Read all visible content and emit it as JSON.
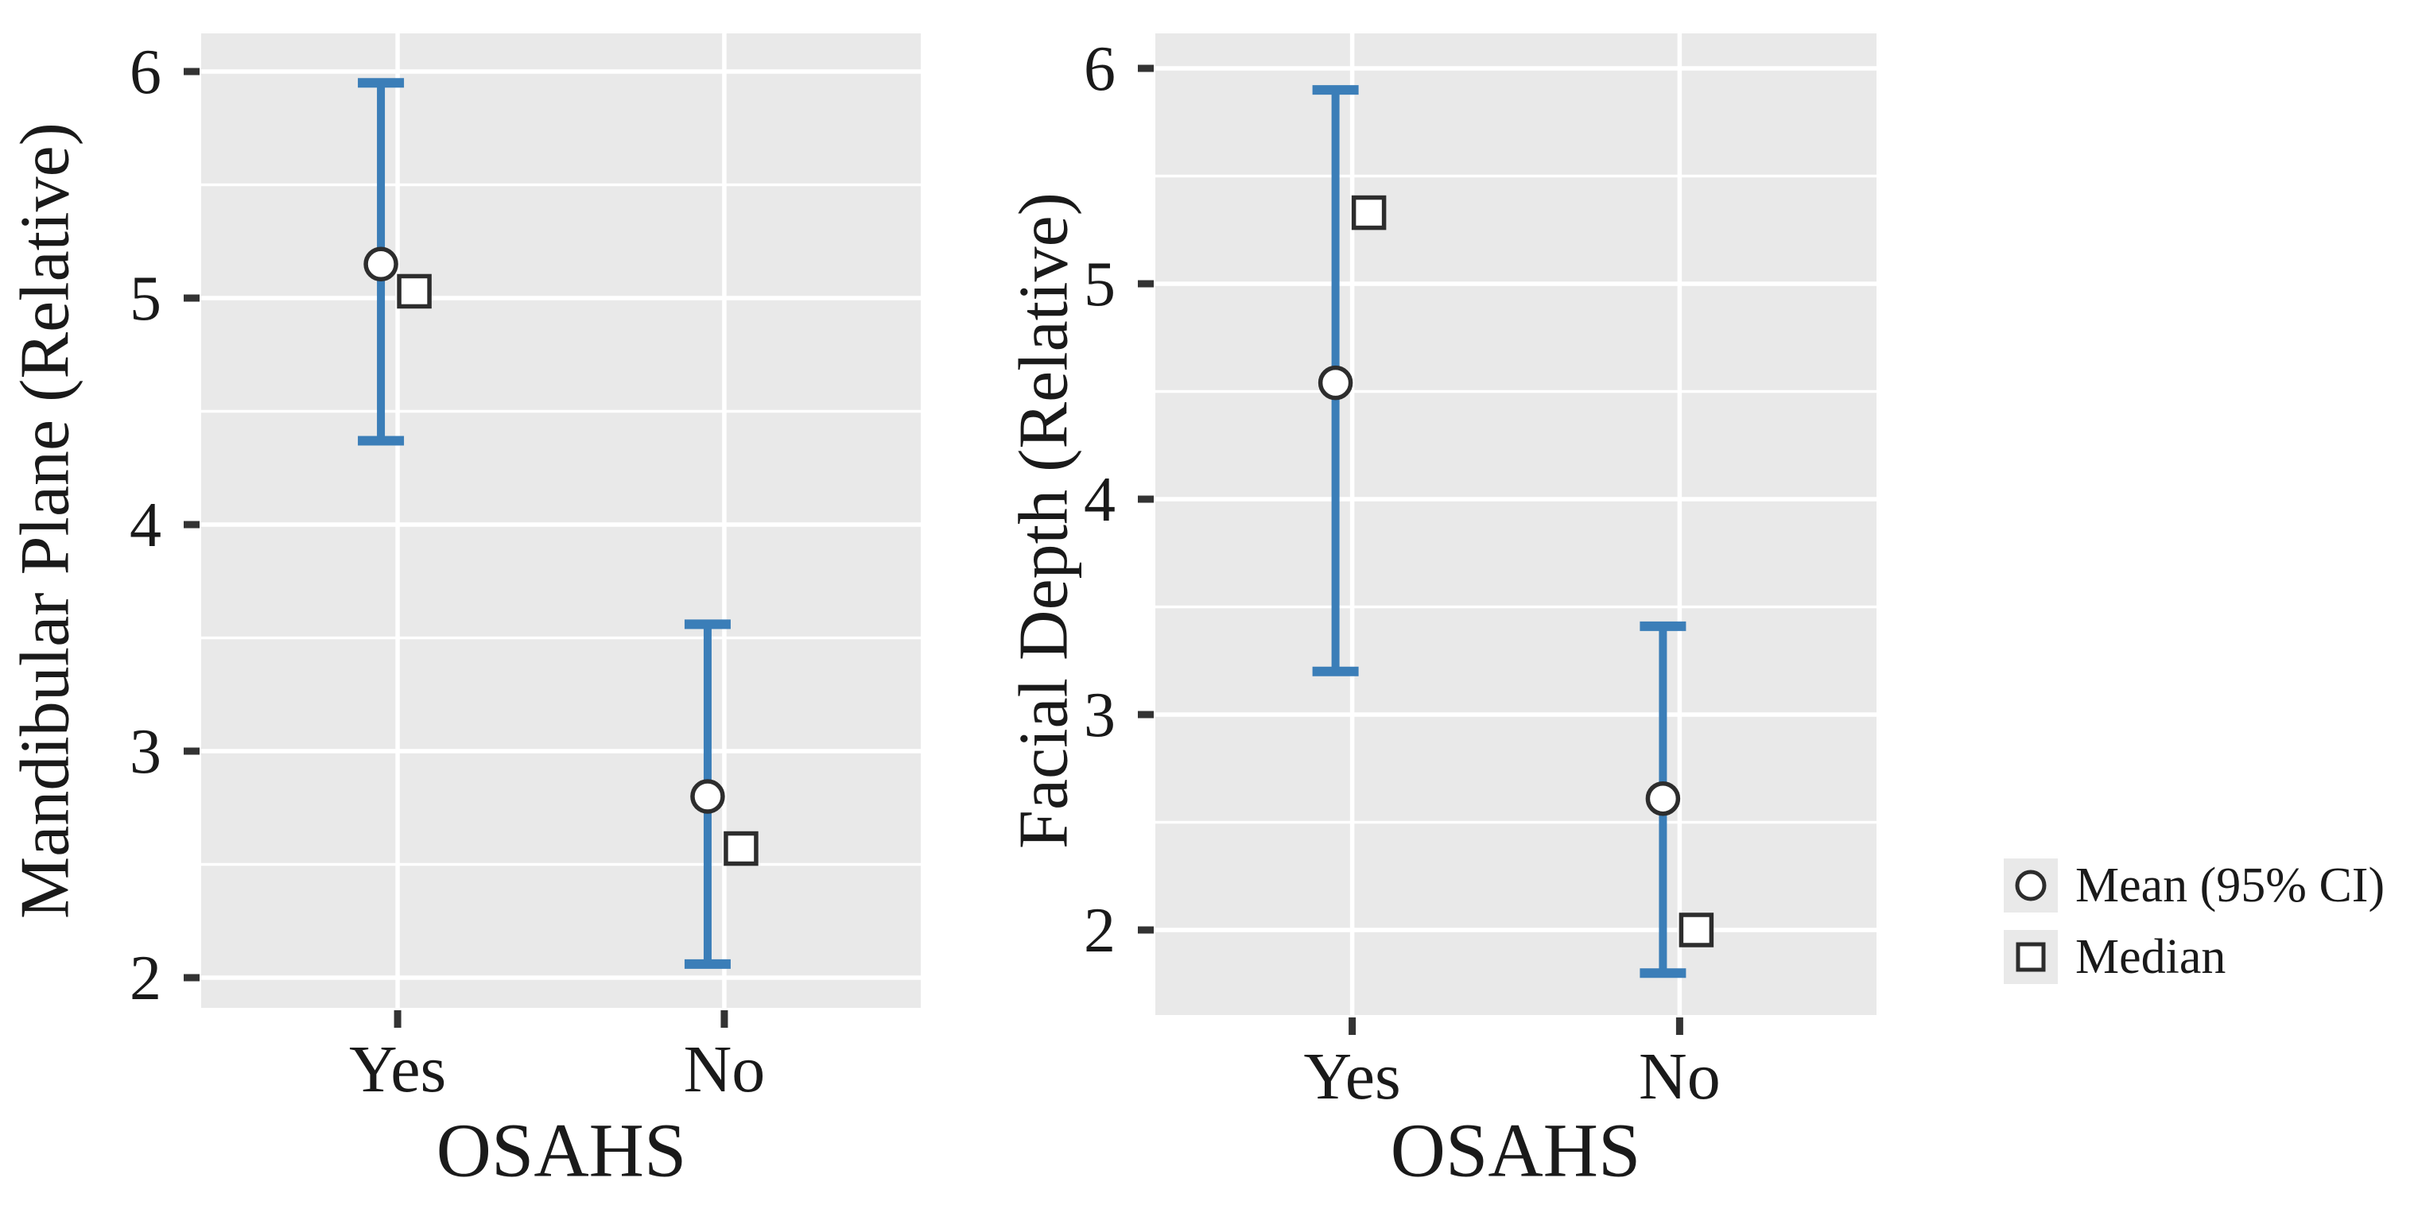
{
  "colors": {
    "errorbar_blue": "#3b7eb8",
    "marker_stroke": "#2d2d2d",
    "marker_fill": "#ffffff",
    "panel_background": "#e9e9e9",
    "gridline": "#ffffff",
    "tick_mark": "#333333",
    "text": "#1a1a1a"
  },
  "legend": {
    "items": [
      {
        "marker": "circle-icon",
        "label": "Mean (95% CI)"
      },
      {
        "marker": "square-icon",
        "label": "Median"
      }
    ]
  },
  "chart_data": [
    {
      "type": "errorbar",
      "title": "",
      "ylabel": "Mandibular Plane (Relative)",
      "xlabel": "OSAHS",
      "categories": [
        "Yes",
        "No"
      ],
      "yticks": [
        6,
        5,
        4,
        3,
        2
      ],
      "minor_gridlines": [
        5.5,
        4.5,
        3.5,
        2.5
      ],
      "ylim": [
        1.87,
        6.17
      ],
      "grid": true,
      "legend_position": "none",
      "series_note": "circle = mean with 95% CI error bar, square = median",
      "groups": [
        {
          "category": "Yes",
          "mean": 5.15,
          "ci_low": 4.37,
          "ci_high": 5.95,
          "median": 5.03
        },
        {
          "category": "No",
          "mean": 2.8,
          "ci_low": 2.06,
          "ci_high": 3.56,
          "median": 2.57
        }
      ]
    },
    {
      "type": "errorbar",
      "title": "",
      "ylabel": "Facial Depth (Relative)",
      "xlabel": "OSAHS",
      "categories": [
        "Yes",
        "No"
      ],
      "yticks": [
        6,
        5,
        4,
        3,
        2
      ],
      "minor_gridlines": [
        5.5,
        4.5,
        3.5,
        2.5
      ],
      "ylim": [
        1.6,
        6.16
      ],
      "grid": true,
      "legend_position": "right",
      "series_note": "circle = mean with 95% CI error bar, square = median",
      "groups": [
        {
          "category": "Yes",
          "mean": 4.54,
          "ci_low": 3.2,
          "ci_high": 5.9,
          "median": 5.33
        },
        {
          "category": "No",
          "mean": 2.61,
          "ci_low": 1.8,
          "ci_high": 3.41,
          "median": 2.0
        }
      ]
    }
  ]
}
